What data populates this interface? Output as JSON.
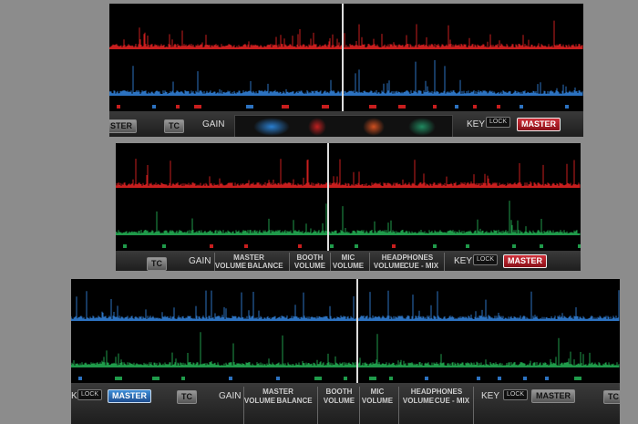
{
  "panels": [
    {
      "left_deck": {
        "master_button": "STER",
        "tc": "TC",
        "gain": "GAIN"
      },
      "right_deck": {
        "key": "KEY",
        "lock": "LOCK",
        "master_button": "MASTER"
      }
    },
    {
      "left_deck": {
        "tc": "TC",
        "gain": "GAIN"
      },
      "mixer": {
        "master": "MASTER",
        "master_volume": "VOLUME",
        "master_balance": "BALANCE",
        "booth": "BOOTH",
        "booth_volume": "VOLUME",
        "mic": "MIC",
        "mic_volume": "VOLUME",
        "headphones": "HEADPHONES",
        "headphones_volume": "VOLUME",
        "headphones_cue_mix": "CUE - MIX"
      },
      "right_deck": {
        "key": "KEY",
        "lock": "LOCK",
        "master_button": "MASTER"
      }
    },
    {
      "left_deck": {
        "key": "KEY",
        "lock": "LOCK",
        "master_button": "MASTER",
        "tc": "TC",
        "gain": "GAIN"
      },
      "mixer": {
        "master": "MASTER",
        "master_volume": "VOLUME",
        "master_balance": "BALANCE",
        "booth": "BOOTH",
        "booth_volume": "VOLUME",
        "mic": "MIC",
        "mic_volume": "VOLUME",
        "headphones": "HEADPHONES",
        "headphones_volume": "VOLUME",
        "headphones_cue_mix": "CUE - MIX"
      },
      "right_deck": {
        "key": "KEY",
        "lock": "LOCK",
        "master_button": "MASTER",
        "tc": "TC"
      }
    }
  ]
}
